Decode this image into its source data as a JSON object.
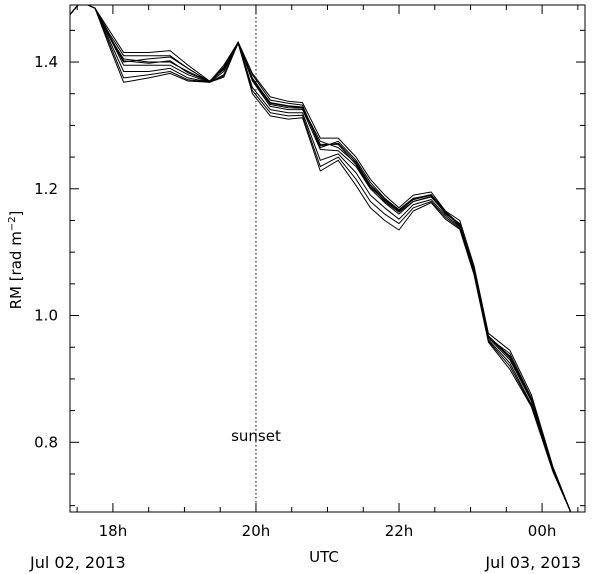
{
  "chart_data": {
    "type": "line",
    "xlabel": "UTC",
    "ylabel_main": "RM [rad m",
    "ylabel_sup": "−2",
    "ylabel_close": "]",
    "ylim": [
      0.69,
      1.49
    ],
    "xlim": [
      17.4,
      24.6
    ],
    "grid": false,
    "ymajor_ticks": [
      0.8,
      1.0,
      1.2,
      1.4
    ],
    "ytick_labels": [
      "0.8",
      "1.0",
      "1.2",
      "1.4"
    ],
    "yminor_step": 0.05,
    "xmajor_ticks": [
      18,
      20,
      22,
      24
    ],
    "xtick_labels": [
      "18h",
      "20h",
      "22h",
      "00h"
    ],
    "xminor_step": 0.5,
    "date_labels": {
      "left": "Jul 02, 2013",
      "right": "Jul 03, 2013"
    },
    "annotation": {
      "text": "sunset",
      "x": 20.0,
      "y": 0.81
    },
    "sunset_x": 20.0,
    "x": [
      17.4,
      17.55,
      17.75,
      17.95,
      18.15,
      18.5,
      18.8,
      19.05,
      19.35,
      19.55,
      19.75,
      19.95,
      20.2,
      20.45,
      20.65,
      20.9,
      21.15,
      21.4,
      21.6,
      21.8,
      22.0,
      22.2,
      22.45,
      22.65,
      22.85,
      23.05,
      23.25,
      23.55,
      23.85,
      24.15,
      24.4,
      24.6
    ],
    "series": [
      {
        "values": [
          1.475,
          1.495,
          1.485,
          1.44,
          1.4,
          1.405,
          1.408,
          1.39,
          1.369,
          1.395,
          1.431,
          1.375,
          1.335,
          1.33,
          1.328,
          1.275,
          1.265,
          1.24,
          1.205,
          1.18,
          1.163,
          1.18,
          1.188,
          1.165,
          1.14,
          1.075,
          0.968,
          0.935,
          0.865,
          0.76,
          0.69,
          0.69
        ]
      },
      {
        "values": [
          1.475,
          1.495,
          1.485,
          1.445,
          1.41,
          1.41,
          1.41,
          1.39,
          1.369,
          1.392,
          1.431,
          1.38,
          1.34,
          1.335,
          1.332,
          1.265,
          1.275,
          1.245,
          1.21,
          1.185,
          1.167,
          1.185,
          1.19,
          1.16,
          1.145,
          1.07,
          0.965,
          0.94,
          0.87,
          0.76,
          0.69,
          0.69
        ]
      },
      {
        "values": [
          1.475,
          1.495,
          1.485,
          1.45,
          1.415,
          1.415,
          1.418,
          1.395,
          1.37,
          1.388,
          1.432,
          1.382,
          1.345,
          1.338,
          1.336,
          1.28,
          1.28,
          1.25,
          1.215,
          1.19,
          1.17,
          1.19,
          1.195,
          1.165,
          1.15,
          1.078,
          0.972,
          0.945,
          0.875,
          0.762,
          0.69,
          0.69
        ]
      },
      {
        "values": [
          1.475,
          1.495,
          1.485,
          1.44,
          1.395,
          1.395,
          1.395,
          1.38,
          1.368,
          1.385,
          1.43,
          1.37,
          1.33,
          1.325,
          1.325,
          1.262,
          1.26,
          1.235,
          1.2,
          1.178,
          1.16,
          1.18,
          1.187,
          1.162,
          1.142,
          1.072,
          0.965,
          0.93,
          0.865,
          0.758,
          0.69,
          0.69
        ]
      },
      {
        "values": [
          1.475,
          1.495,
          1.485,
          1.435,
          1.385,
          1.385,
          1.39,
          1.375,
          1.368,
          1.38,
          1.43,
          1.36,
          1.325,
          1.32,
          1.32,
          1.245,
          1.255,
          1.225,
          1.19,
          1.17,
          1.152,
          1.175,
          1.183,
          1.158,
          1.14,
          1.068,
          0.962,
          0.925,
          0.86,
          0.756,
          0.69,
          0.69
        ]
      },
      {
        "values": [
          1.475,
          1.495,
          1.485,
          1.43,
          1.375,
          1.38,
          1.385,
          1.372,
          1.368,
          1.378,
          1.43,
          1.355,
          1.32,
          1.315,
          1.316,
          1.235,
          1.25,
          1.215,
          1.18,
          1.16,
          1.145,
          1.17,
          1.18,
          1.155,
          1.138,
          1.066,
          0.96,
          0.92,
          0.858,
          0.755,
          0.69,
          0.69
        ]
      },
      {
        "values": [
          1.475,
          1.495,
          1.485,
          1.425,
          1.368,
          1.375,
          1.382,
          1.37,
          1.368,
          1.376,
          1.43,
          1.35,
          1.315,
          1.31,
          1.312,
          1.228,
          1.245,
          1.205,
          1.17,
          1.15,
          1.135,
          1.165,
          1.178,
          1.152,
          1.136,
          1.064,
          0.958,
          0.915,
          0.856,
          0.754,
          0.69,
          0.69
        ]
      },
      {
        "values": [
          1.475,
          1.495,
          1.485,
          1.44,
          1.405,
          1.4,
          1.4,
          1.385,
          1.369,
          1.39,
          1.431,
          1.372,
          1.333,
          1.328,
          1.327,
          1.27,
          1.27,
          1.238,
          1.202,
          1.182,
          1.165,
          1.183,
          1.19,
          1.163,
          1.143,
          1.074,
          0.967,
          0.933,
          0.868,
          0.759,
          0.69,
          0.69
        ]
      },
      {
        "values": [
          1.475,
          1.495,
          1.485,
          1.442,
          1.402,
          1.398,
          1.402,
          1.383,
          1.369,
          1.389,
          1.431,
          1.373,
          1.336,
          1.331,
          1.329,
          1.268,
          1.272,
          1.242,
          1.206,
          1.184,
          1.166,
          1.184,
          1.191,
          1.164,
          1.144,
          1.073,
          0.966,
          0.936,
          0.869,
          0.76,
          0.69,
          0.69
        ]
      }
    ]
  }
}
